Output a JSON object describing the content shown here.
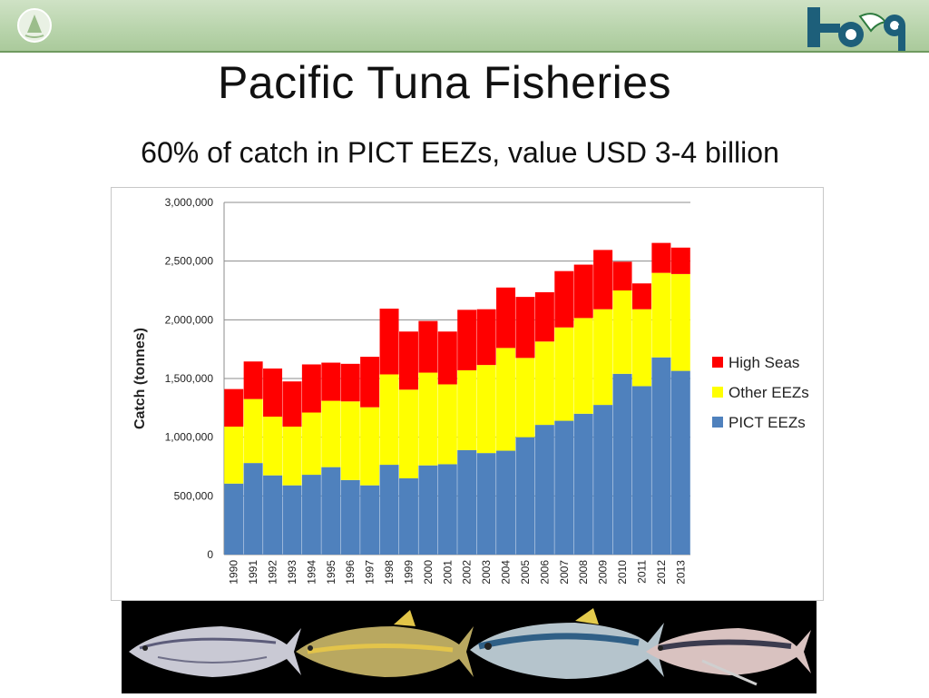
{
  "slide": {
    "title": "Pacific Tuna Fisheries",
    "subtitle": "60% of catch in PICT EEZs, value USD 3-4 billion"
  },
  "colors": {
    "pict_eezs": "#4f81bd",
    "other_eezs": "#ffff00",
    "high_seas": "#ff0000",
    "banner": "#b7d3aa"
  },
  "icons": {
    "banner_mark": "sail-icon",
    "banner_logo": "hof9-logo"
  },
  "chart_data": {
    "type": "bar",
    "stacked": true,
    "title": "",
    "xlabel": "",
    "ylabel": "Catch (tonnes)",
    "ylim": [
      0,
      3000000
    ],
    "yticks": [
      0,
      500000,
      1000000,
      1500000,
      2000000,
      2500000,
      3000000
    ],
    "ytick_labels": [
      "0",
      "500,000",
      "1,000,000",
      "1,500,000",
      "2,000,000",
      "2,500,000",
      "3,000,000"
    ],
    "grid": true,
    "legend_position": "right",
    "categories": [
      "1990",
      "1991",
      "1992",
      "1993",
      "1994",
      "1995",
      "1996",
      "1997",
      "1998",
      "1999",
      "2000",
      "2001",
      "2002",
      "2003",
      "2004",
      "2005",
      "2006",
      "2007",
      "2008",
      "2009",
      "2010",
      "2011",
      "2012",
      "2013"
    ],
    "series": [
      {
        "name": "PICT EEZs",
        "values": [
          605000,
          780000,
          675000,
          590000,
          680000,
          745000,
          635000,
          590000,
          765000,
          650000,
          760000,
          770000,
          890000,
          865000,
          885000,
          1000000,
          1105000,
          1140000,
          1200000,
          1275000,
          1540000,
          1435000,
          1680000,
          1565000
        ]
      },
      {
        "name": "Other EEZs",
        "values": [
          485000,
          545000,
          500000,
          500000,
          530000,
          565000,
          670000,
          665000,
          770000,
          755000,
          790000,
          680000,
          680000,
          750000,
          875000,
          675000,
          710000,
          795000,
          815000,
          815000,
          710000,
          655000,
          720000,
          825000
        ]
      },
      {
        "name": "High Seas",
        "values": [
          320000,
          320000,
          410000,
          385000,
          410000,
          325000,
          320000,
          430000,
          560000,
          495000,
          440000,
          450000,
          515000,
          475000,
          515000,
          520000,
          420000,
          480000,
          455000,
          505000,
          245000,
          220000,
          255000,
          225000
        ]
      }
    ],
    "legend_order": [
      "High Seas",
      "Other EEZs",
      "PICT EEZs"
    ]
  }
}
